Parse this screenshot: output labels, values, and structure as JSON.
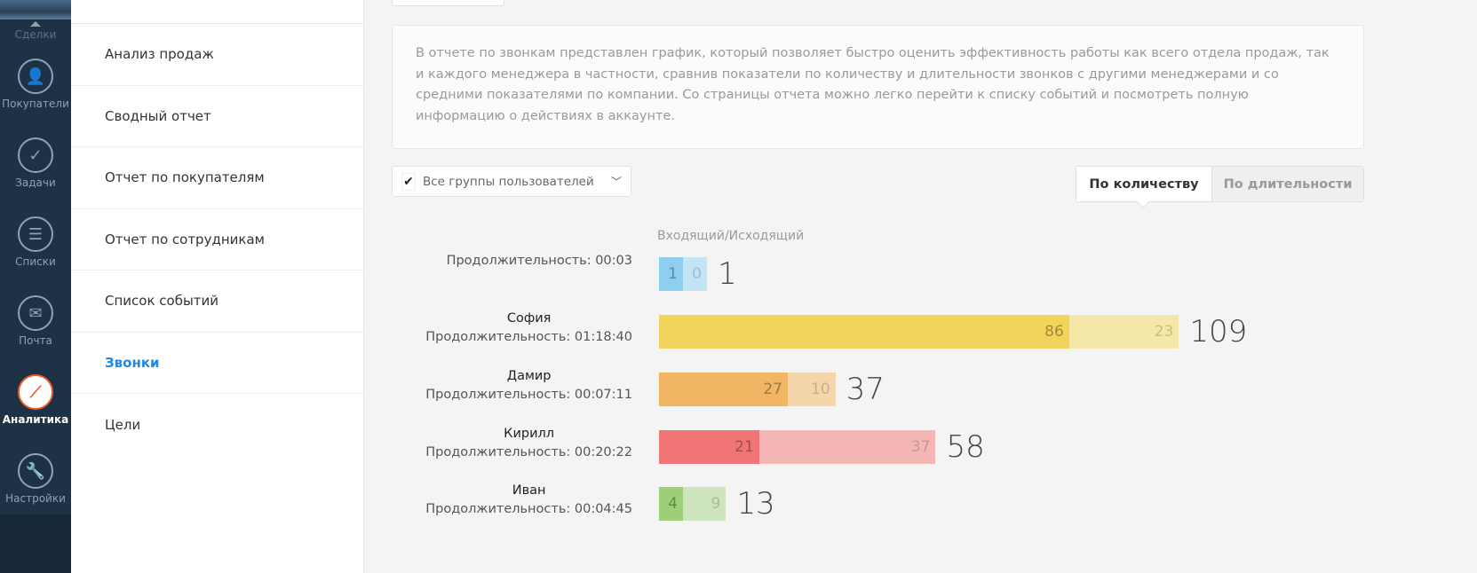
{
  "nav": {
    "top_label": "Сделки",
    "items": [
      {
        "label": "Покупатели",
        "icon": "customers-icon",
        "glyph": "👤"
      },
      {
        "label": "Задачи",
        "icon": "tasks-icon",
        "glyph": "✓"
      },
      {
        "label": "Списки",
        "icon": "lists-icon",
        "glyph": "☰"
      },
      {
        "label": "Почта",
        "icon": "mail-icon",
        "glyph": "✉"
      },
      {
        "label": "Аналитика",
        "icon": "analytics-icon",
        "glyph": "⟋",
        "active": true
      },
      {
        "label": "Настройки",
        "icon": "settings-icon",
        "glyph": "🔧"
      }
    ]
  },
  "submenu": {
    "items": [
      "Анализ продаж",
      "Сводный отчет",
      "Отчет по покупателям",
      "Отчет по сотрудникам",
      "Список событий",
      "Звонки",
      "Цели"
    ],
    "active": "Звонки"
  },
  "description": "В отчете по звонкам представлен график, который позволяет быстро оценить эффективность работы как всего отдела продаж, так и каждого менеджера в частности, сравнив показатели по количеству и длительности звонков с другими менеджерами и со средними показателями по компании. Со страницы отчета можно легко перейти к списку событий и посмотреть полную информацию о действиях в аккаунте.",
  "filter": {
    "label": "Все группы пользователей",
    "checked": true
  },
  "toggle": {
    "active": "По количеству",
    "inactive": "По длительности"
  },
  "chart_data": {
    "type": "bar",
    "orientation": "horizontal",
    "stacked": true,
    "legend": "Входящий/Исходящий",
    "duration_prefix": "Продолжительность:",
    "rows": [
      {
        "name": "",
        "duration": "00:03",
        "incoming": 1,
        "outgoing": 0,
        "total": 1,
        "color_in": "#8ecff0",
        "color_out": "#c3e4f5"
      },
      {
        "name": "София",
        "duration": "01:18:40",
        "incoming": 86,
        "outgoing": 23,
        "total": 109,
        "color_in": "#f2d35c",
        "color_out": "#f5e7a8"
      },
      {
        "name": "Дамир",
        "duration": "00:07:11",
        "incoming": 27,
        "outgoing": 10,
        "total": 37,
        "color_in": "#f2b563",
        "color_out": "#f5d6aa"
      },
      {
        "name": "Кирилл",
        "duration": "00:20:22",
        "incoming": 21,
        "outgoing": 37,
        "total": 58,
        "color_in": "#f07474",
        "color_out": "#f4b5b5"
      },
      {
        "name": "Иван",
        "duration": "00:04:45",
        "incoming": 4,
        "outgoing": 9,
        "total": 13,
        "color_in": "#9ccf77",
        "color_out": "#cee4bc"
      }
    ]
  }
}
